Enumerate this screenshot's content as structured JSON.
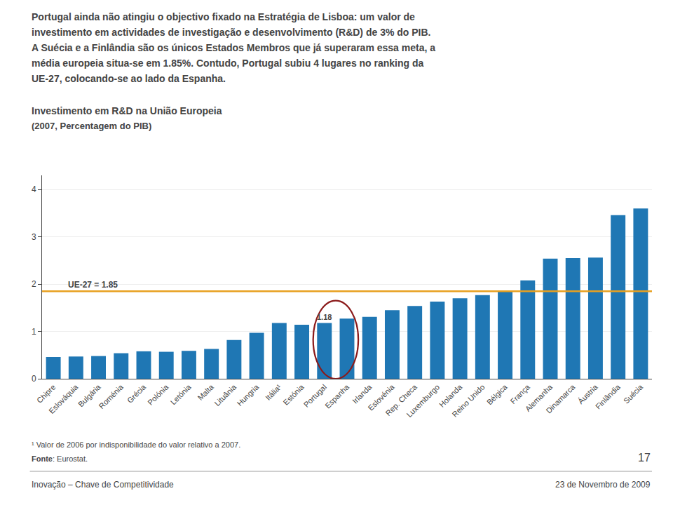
{
  "chart_data": {
    "type": "bar",
    "title": "Investimento em R&D na União Europeia",
    "subtitle": "(2007, Percentagem do PIB)",
    "categories": [
      "Chipre",
      "Eslováquia",
      "Bulgária",
      "Roménia",
      "Grécia",
      "Polónia",
      "Letónia",
      "Malta",
      "Lituânia",
      "Hungria",
      "Itália¹",
      "Estónia",
      "Portugal",
      "Espanha",
      "Irlanda",
      "Eslovénia",
      "Rep. Checa",
      "Luxemburgo",
      "Holanda",
      "Reino Unido",
      "Bélgica",
      "França",
      "Alemanha",
      "Dinamarca",
      "Áustria",
      "Finlândia",
      "Suécia"
    ],
    "values": [
      0.46,
      0.47,
      0.48,
      0.54,
      0.58,
      0.57,
      0.59,
      0.63,
      0.82,
      0.97,
      1.18,
      1.14,
      1.18,
      1.27,
      1.31,
      1.45,
      1.54,
      1.63,
      1.7,
      1.77,
      1.87,
      2.08,
      2.54,
      2.55,
      2.56,
      3.46,
      3.6
    ],
    "ylim": [
      0,
      4.3
    ],
    "yticks": [
      0,
      1,
      2,
      3,
      4
    ],
    "grid": true,
    "reference_line": {
      "value": 1.85,
      "label": "UE-27 = 1.85",
      "color": "#e8a020"
    },
    "annotations": [
      {
        "category": "Portugal",
        "text": "1.18"
      }
    ],
    "highlight": {
      "categories": [
        "Portugal",
        "Espanha"
      ],
      "color": "#8b1a1a"
    }
  },
  "header": [
    "Portugal ainda não atingiu o objectivo fixado na Estratégia de Lisboa: um valor de",
    "investimento em actividades de investigação e desenvolvimento (R&D) de 3% do PIB.",
    "A Suécia e a Finlândia são os únicos Estados Membros que já superaram essa meta, a",
    "média europeia situa-se em 1.85%. Contudo, Portugal subiu 4 lugares no ranking da",
    "UE-27, colocando-se ao lado da Espanha."
  ],
  "footnote": "¹ Valor de 2006 por indisponibilidade do valor relativo a 2007.",
  "source": [
    "Fonte",
    ": Eurostat."
  ],
  "page_number": "17",
  "footer_left": "Inovação – Chave de Competitividade",
  "footer_right": "23 de Novembro de 2009"
}
